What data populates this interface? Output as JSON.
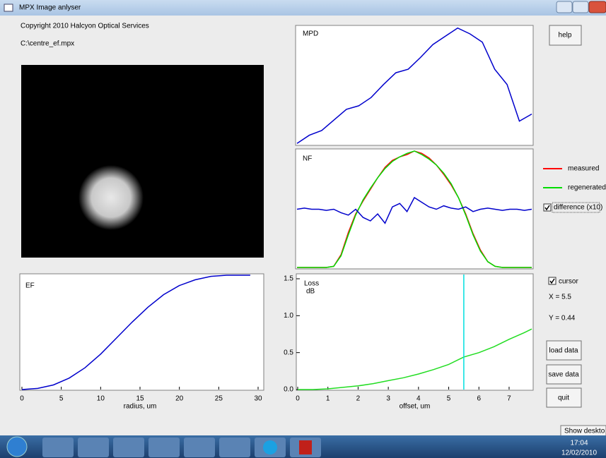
{
  "window": {
    "title": "MPX Image anlyser"
  },
  "header": {
    "copyright": "Copyright 2010 Halcyon Optical Services",
    "file": "C:\\centre_ef.mpx"
  },
  "buttons": {
    "help": "help",
    "load": "load data",
    "save": "save data",
    "quit": "quit"
  },
  "cursor_panel": {
    "label": "cursor",
    "x_text": "X = 5.5",
    "y_text": "Y = 0.44"
  },
  "taskbar": {
    "time": "17:04",
    "date": "12/02/2010",
    "tooltip": "Show deskto"
  },
  "chart_data": [
    {
      "type": "line",
      "title": "MPD",
      "ylim": [
        0,
        1
      ],
      "color": "#0000cc",
      "values": [
        0.01,
        0.08,
        0.12,
        0.21,
        0.3,
        0.33,
        0.4,
        0.51,
        0.61,
        0.64,
        0.74,
        0.85,
        0.92,
        0.99,
        0.94,
        0.87,
        0.64,
        0.51,
        0.2,
        0.26
      ]
    },
    {
      "type": "line",
      "title": "NF",
      "ylim": [
        0,
        1
      ],
      "xlim": [
        0,
        33
      ],
      "series": [
        {
          "name": "measured",
          "color": "#ff0000",
          "values": [
            0,
            0,
            0,
            0,
            0,
            0.01,
            0.11,
            0.3,
            0.46,
            0.57,
            0.67,
            0.77,
            0.86,
            0.92,
            0.95,
            0.97,
            1.0,
            0.98,
            0.94,
            0.88,
            0.8,
            0.71,
            0.6,
            0.46,
            0.29,
            0.15,
            0.05,
            0.01,
            0,
            0,
            0,
            0,
            0
          ]
        },
        {
          "name": "regenerated",
          "color": "#00dd00",
          "values": [
            0,
            0,
            0,
            0,
            0,
            0.01,
            0.1,
            0.28,
            0.45,
            0.58,
            0.68,
            0.77,
            0.85,
            0.91,
            0.95,
            0.98,
            1.0,
            0.97,
            0.93,
            0.88,
            0.81,
            0.72,
            0.6,
            0.45,
            0.28,
            0.14,
            0.05,
            0.01,
            0,
            0,
            0,
            0,
            0
          ]
        },
        {
          "name": "difference (x10)",
          "color": "#0000cc",
          "values": [
            0.5,
            0.51,
            0.5,
            0.5,
            0.49,
            0.5,
            0.47,
            0.45,
            0.5,
            0.43,
            0.4,
            0.46,
            0.38,
            0.52,
            0.55,
            0.48,
            0.6,
            0.56,
            0.52,
            0.5,
            0.53,
            0.51,
            0.5,
            0.52,
            0.48,
            0.5,
            0.51,
            0.5,
            0.49,
            0.5,
            0.5,
            0.49,
            0.5
          ]
        }
      ]
    },
    {
      "type": "line",
      "title": "EF",
      "x_label": "radius, um",
      "xlim": [
        0,
        30
      ],
      "ylim": [
        0,
        1
      ],
      "xticks": [
        0,
        5,
        10,
        15,
        20,
        25,
        30
      ],
      "color": "#0000cc",
      "x": [
        0,
        2,
        4,
        6,
        8,
        10,
        12,
        14,
        16,
        18,
        20,
        22,
        24,
        26,
        28,
        29
      ],
      "values": [
        0,
        0.01,
        0.04,
        0.1,
        0.19,
        0.31,
        0.45,
        0.59,
        0.72,
        0.83,
        0.91,
        0.96,
        0.99,
        1.0,
        1.0,
        1.0
      ]
    },
    {
      "type": "line",
      "title": "Loss",
      "y_label": "dB",
      "x_label": "offset, um",
      "xlim": [
        0,
        7.75
      ],
      "ylim": [
        0,
        1.5
      ],
      "xticks": [
        0,
        1,
        2,
        3,
        4,
        5,
        6,
        7
      ],
      "yticks": [
        {
          "value": 0,
          "label": "0.0"
        },
        0.5,
        {
          "value": 1,
          "label": "1.0"
        },
        1.5
      ],
      "color": "#22dd22",
      "cursor_x": 5.5,
      "cursor_color": "#00e0e0",
      "x": [
        0,
        0.5,
        1,
        1.5,
        2,
        2.5,
        3,
        3.5,
        4,
        4.5,
        5,
        5.5,
        6,
        6.5,
        7,
        7.5,
        7.75
      ],
      "values": [
        0,
        0,
        0.01,
        0.03,
        0.05,
        0.08,
        0.12,
        0.16,
        0.21,
        0.27,
        0.34,
        0.44,
        0.5,
        0.58,
        0.68,
        0.77,
        0.82
      ]
    }
  ]
}
